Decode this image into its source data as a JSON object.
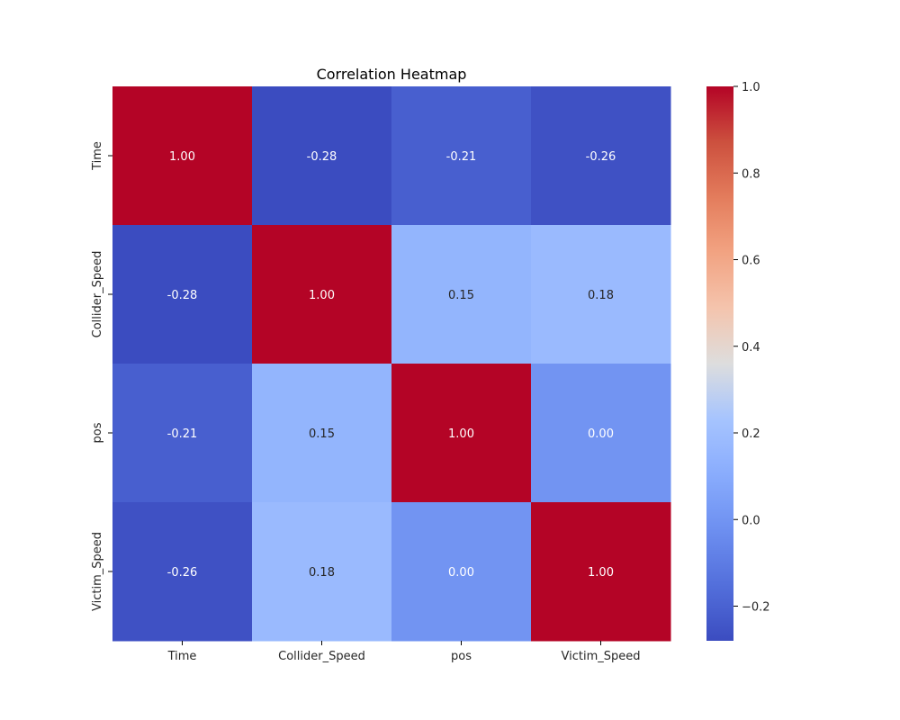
{
  "chart_data": {
    "type": "heatmap",
    "title": "Correlation Heatmap",
    "x_categories": [
      "Time",
      "Collider_Speed",
      "pos",
      "Victim_Speed"
    ],
    "y_categories": [
      "Time",
      "Collider_Speed",
      "pos",
      "Victim_Speed"
    ],
    "values": [
      [
        1.0,
        -0.28,
        -0.21,
        -0.26
      ],
      [
        -0.28,
        1.0,
        0.15,
        0.18
      ],
      [
        -0.21,
        0.15,
        1.0,
        0.0
      ],
      [
        -0.26,
        0.18,
        0.0,
        1.0
      ]
    ],
    "annotations": [
      [
        "1.00",
        "-0.28",
        "-0.21",
        "-0.26"
      ],
      [
        "-0.28",
        "1.00",
        "0.15",
        "0.18"
      ],
      [
        "-0.21",
        "0.15",
        "1.00",
        "0.00"
      ],
      [
        "-0.26",
        "0.18",
        "0.00",
        "1.00"
      ]
    ],
    "colormap": "coolwarm",
    "colorbar": {
      "vmin": -0.28,
      "vmax": 1.0,
      "ticks": [
        1.0,
        0.8,
        0.6,
        0.4,
        0.2,
        0.0,
        -0.2
      ],
      "tick_labels": [
        "1.0",
        "0.8",
        "0.6",
        "0.4",
        "0.2",
        "0.0",
        "−0.2"
      ]
    },
    "grid": false,
    "legend": "colorbar-right"
  }
}
